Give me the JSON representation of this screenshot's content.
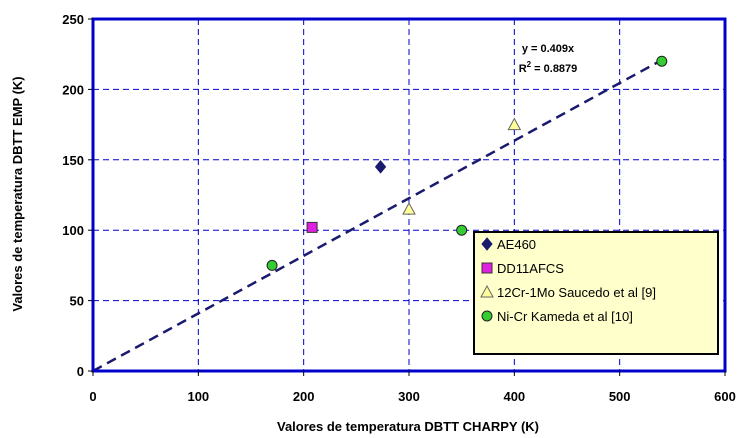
{
  "chart_data": {
    "type": "scatter",
    "xlabel": "Valores de temperatura DBTT CHARPY (K)",
    "ylabel": "Valores de temperatura DBTT EMP (K)",
    "xlim": [
      0,
      600
    ],
    "ylim": [
      0,
      250
    ],
    "xticks": [
      0,
      100,
      200,
      300,
      400,
      500,
      600
    ],
    "yticks": [
      0,
      50,
      100,
      150,
      200,
      250
    ],
    "grid": true,
    "legend_position": "bottom-right",
    "series": [
      {
        "name": "AE460",
        "marker": "diamond",
        "color": "#1a1a6e",
        "x": [
          273
        ],
        "y": [
          145
        ]
      },
      {
        "name": "DD11AFCS",
        "marker": "square",
        "color": "#e020e0",
        "x": [
          208
        ],
        "y": [
          102
        ]
      },
      {
        "name": "12Cr-1Mo Saucedo et al [9]",
        "marker": "triangle",
        "color": "#ffff99",
        "x": [
          300,
          400
        ],
        "y": [
          115,
          175
        ]
      },
      {
        "name": "Ni-Cr Kameda et al [10]",
        "marker": "circle",
        "color": "#33cc33",
        "x": [
          170,
          350,
          540
        ],
        "y": [
          75,
          100,
          220
        ]
      }
    ],
    "trendline": {
      "slope": 0.409,
      "x_range": [
        0,
        540
      ],
      "equation": "y = 0.409x",
      "r2_prefix": "R",
      "r2_sup": "2",
      "r2_value": " = 0.8879"
    }
  },
  "colors": {
    "frame": "#0000cc",
    "grid": "#0000cc",
    "trendline": "#1a1a6e",
    "legend_bg": "#ffffcc"
  }
}
